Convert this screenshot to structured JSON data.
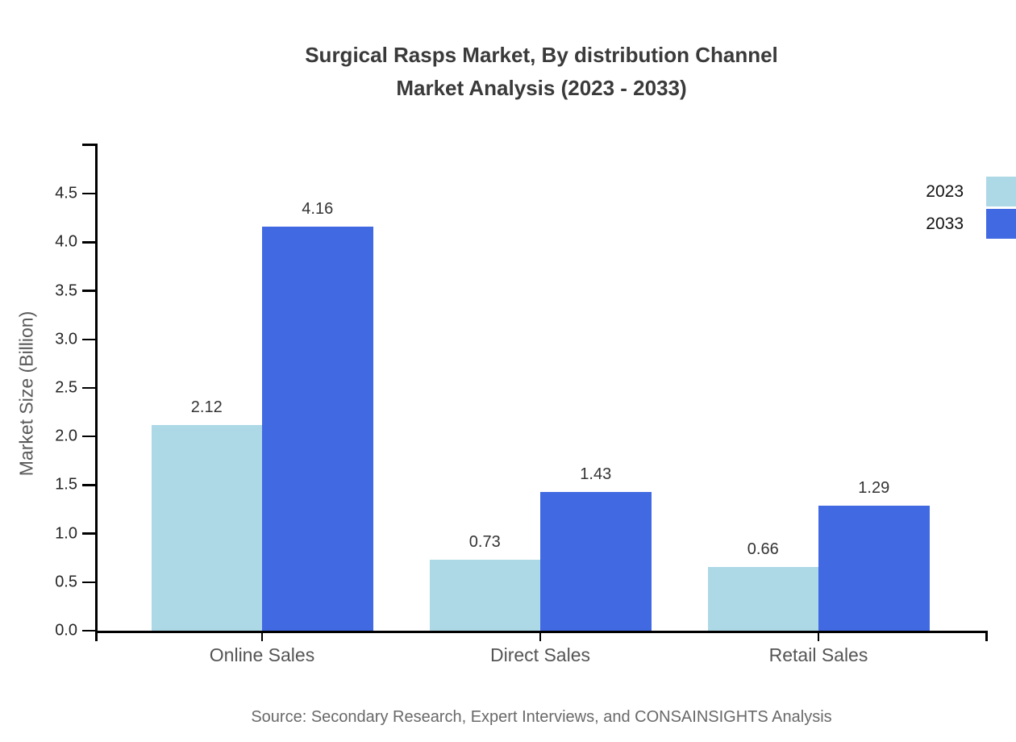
{
  "title": {
    "line1": "Surgical Rasps Market, By distribution Channel",
    "line2": "Market Analysis (2023 - 2033)"
  },
  "chart_data": {
    "type": "bar",
    "title": "Surgical Rasps Market, By distribution Channel Market Analysis (2023 - 2033)",
    "categories": [
      "Online Sales",
      "Direct Sales",
      "Retail Sales"
    ],
    "series": [
      {
        "name": "2023",
        "color": "#ADD8E6",
        "values": [
          2.12,
          0.73,
          0.66
        ]
      },
      {
        "name": "2033",
        "color": "#4169E1",
        "values": [
          4.16,
          1.43,
          1.29
        ]
      }
    ],
    "xlabel": "",
    "ylabel": "Market Size (Billion)",
    "ylim": [
      0,
      5
    ],
    "yticks": [
      0.0,
      0.5,
      1.0,
      1.5,
      2.0,
      2.5,
      3.0,
      3.5,
      4.0,
      4.5
    ],
    "grid": false,
    "legend_position": "top-right",
    "value_labels": true
  },
  "legend": {
    "items": [
      {
        "label": "2023",
        "color": "#ADD8E6"
      },
      {
        "label": "2033",
        "color": "#4169E1"
      }
    ]
  },
  "source": "Source: Secondary Research, Expert Interviews, and CONSAINSIGHTS Analysis"
}
